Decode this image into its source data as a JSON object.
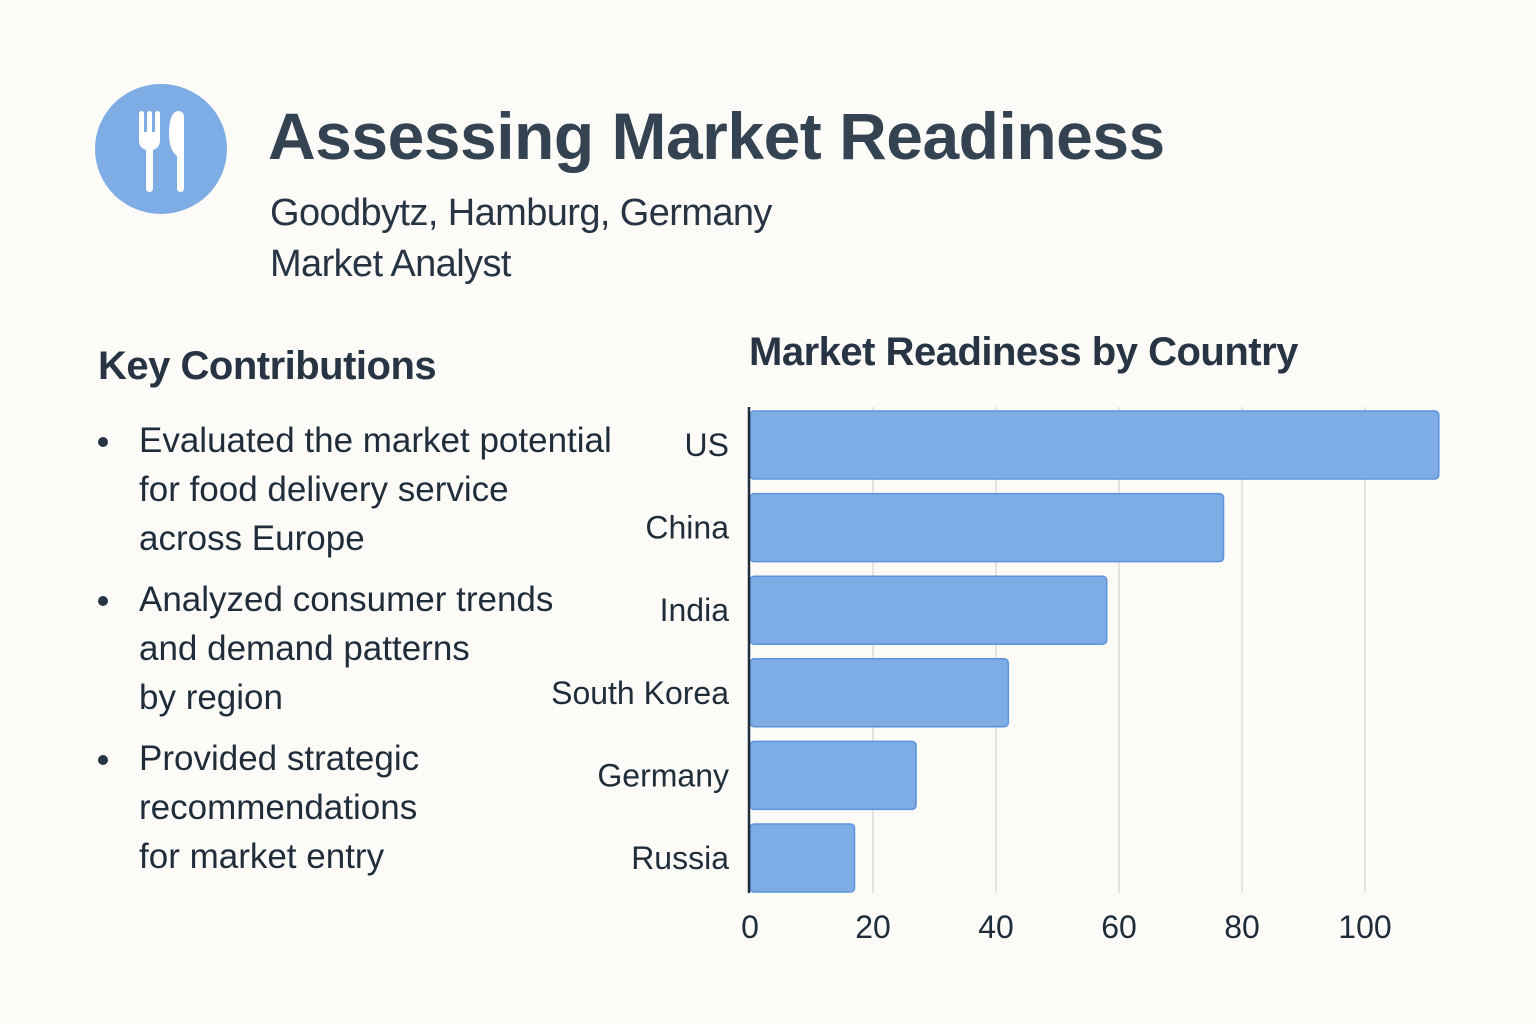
{
  "header": {
    "logo_icon": "fork-knife-icon",
    "title": "Assessing Market Readiness",
    "subtitle": "Goodbytz, Hamburg, Germany",
    "role": "Market Analyst"
  },
  "contributions": {
    "heading": "Key Contributions",
    "items": [
      {
        "lines": [
          "Evaluated the market potential",
          "for food delivery service",
          "across Europe"
        ]
      },
      {
        "lines": [
          "Analyzed consumer trends",
          "and demand patterns",
          "by region"
        ]
      },
      {
        "lines": [
          "Provided strategic",
          "recommendations",
          "for market entry"
        ]
      }
    ]
  },
  "colors": {
    "bar": "#7eace5",
    "bar_stroke": "#5d93da",
    "axis": "#1f2d3b",
    "grid": "#e6e4df",
    "text": "#263443"
  },
  "chart_data": {
    "type": "bar",
    "orientation": "horizontal",
    "title": "Market Readiness by Country",
    "xlabel": "",
    "ylabel": "",
    "categories": [
      "US",
      "China",
      "India",
      "South Korea",
      "Germany",
      "Russia"
    ],
    "values": [
      112,
      77,
      58,
      42,
      27,
      17
    ],
    "xlim": [
      0,
      112
    ],
    "xticks": [
      0,
      20,
      40,
      60,
      80,
      100
    ],
    "grid": true,
    "legend": "none"
  }
}
